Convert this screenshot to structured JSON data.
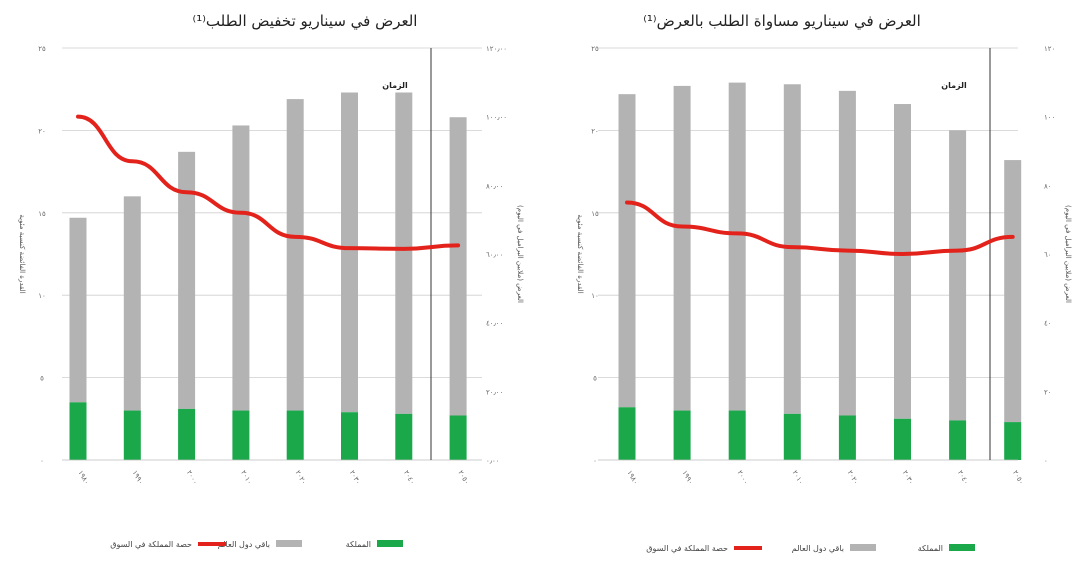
{
  "chart_data": [
    {
      "type": "bar",
      "title": "العرض في سيناريو تخفيض الطلب⁽¹⁾",
      "categories": [
        "١٩٨٠",
        "١٩٩٠",
        "٢٠٠٠",
        "٢٠١٠",
        "٢٠٢٠",
        "٢٠٣٠",
        "٢٠٤٠",
        "٢٠٥٠"
      ],
      "series": [
        {
          "name": "المملكة",
          "color": "#1aa84a",
          "values": [
            3.5,
            3.0,
            3.1,
            3.0,
            3.0,
            2.9,
            2.8,
            2.7
          ]
        },
        {
          "name": "باقي دول العالم",
          "color": "#b3b3b3",
          "values": [
            11.2,
            13.0,
            15.6,
            17.3,
            18.9,
            19.4,
            19.5,
            18.1
          ]
        },
        {
          "name": "حصة المملكة في السوق",
          "type": "line",
          "axis": "right",
          "color": "#e3231b",
          "values": [
            100000,
            87000,
            78000,
            72000,
            65000,
            61700,
            61500,
            62500
          ]
        }
      ],
      "ylabel_left": "القدرة الفائضة كنسبة مئوية",
      "ylabel_right": "العرض (ملايين البراميل في اليوم)",
      "ylim_left": [
        0,
        25
      ],
      "ylim_right": [
        0,
        120000
      ],
      "left_ticks": [
        "٠",
        "٥",
        "١٠",
        "١٥",
        "٢٠",
        "٢٥"
      ],
      "right_ticks": [
        "٠٫٠٠",
        "٢٠٫٠٠",
        "٤٠٫٠٠",
        "٦٠٫٠٠",
        "٨٠٫٠٠",
        "١٠٠٫٠٠",
        "١٢٠٫٠٠"
      ],
      "marker_label": "الزمان",
      "grid": true,
      "legend": "bottom"
    },
    {
      "type": "bar",
      "title": "العرض في سيناريو مساواة الطلب بالعرض⁽¹⁾",
      "categories": [
        "١٩٨٠",
        "١٩٩٠",
        "٢٠٠٠",
        "٢٠١٠",
        "٢٠٢٠",
        "٢٠٣٠",
        "٢٠٤٠",
        "٢٠٥٠"
      ],
      "series": [
        {
          "name": "المملكة",
          "color": "#1aa84a",
          "values": [
            3.2,
            3.0,
            3.0,
            2.8,
            2.7,
            2.5,
            2.4,
            2.3
          ]
        },
        {
          "name": "باقي دول العالم",
          "color": "#b3b3b3",
          "values": [
            19.0,
            19.7,
            19.9,
            20.0,
            19.7,
            19.1,
            17.6,
            15.9
          ]
        },
        {
          "name": "حصة المملكة في السوق",
          "type": "line",
          "axis": "right",
          "color": "#e3231b",
          "values": [
            75,
            68,
            66,
            62,
            61,
            60,
            61,
            65
          ]
        }
      ],
      "ylabel_left": "القدرة الفائضة كنسبة مئوية",
      "ylabel_right": "العرض (ملايين البراميل في اليوم)",
      "ylim_left": [
        0,
        25
      ],
      "ylim_right": [
        0,
        120
      ],
      "left_ticks": [
        "٠",
        "٥",
        "١٠",
        "١٥",
        "٢٠",
        "٢٥"
      ],
      "right_ticks": [
        "٠",
        "٢٠",
        "٤٠",
        "٦٠",
        "٨٠",
        "١٠٠",
        "١٢٠"
      ],
      "marker_label": "الزمان",
      "grid": true,
      "legend": "bottom"
    }
  ]
}
